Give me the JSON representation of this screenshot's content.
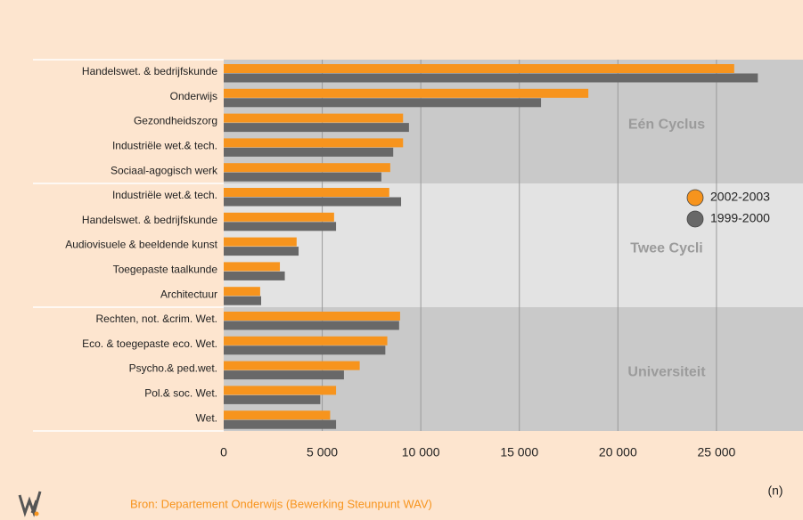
{
  "chart_data": {
    "type": "bar",
    "orientation": "horizontal",
    "groups": [
      {
        "name": "Eén Cyclus",
        "categories": [
          "Handelswet. & bedrijfskunde",
          "Onderwijs",
          "Gezondheidszorg",
          "Industriële wet.& tech.",
          "Sociaal-agogisch werk"
        ]
      },
      {
        "name": "Twee Cycli",
        "categories": [
          "Industriële wet.& tech.",
          "Handelswet. & bedrijfskunde",
          "Audiovisuele & beeldende kunst",
          "Toegepaste taalkunde",
          "Architectuur"
        ]
      },
      {
        "name": "Universiteit",
        "categories": [
          "Rechten, not. &crim. Wet.",
          "Eco. & toegepaste eco. Wet.",
          "Psycho.& ped.wet.",
          "Pol.& soc. Wet.",
          "Wet."
        ]
      }
    ],
    "band_colors": [
      "#c9c9c9",
      "#e3e3e3",
      "#c9c9c9"
    ],
    "series": [
      {
        "name": "2002-2003",
        "color": "#f7941d",
        "values": [
          25900,
          18500,
          9100,
          9100,
          8450,
          8400,
          5600,
          3700,
          2850,
          1850,
          8950,
          8300,
          6900,
          5700,
          5400
        ]
      },
      {
        "name": "1999-2000",
        "color": "#686868",
        "values": [
          27100,
          16100,
          9400,
          8600,
          8000,
          9000,
          5700,
          3800,
          3100,
          1900,
          8900,
          8200,
          6100,
          4900,
          5700
        ]
      }
    ],
    "xlim": [
      0,
      29300
    ],
    "xticks": [
      0,
      {
        "value": 5000,
        "label": "5 000"
      },
      {
        "value": 10000,
        "label": "10 000"
      },
      {
        "value": 15000,
        "label": "15 000"
      },
      {
        "value": 20000,
        "label": "20 000"
      },
      {
        "value": 25000,
        "label": "25 000"
      }
    ],
    "xlabel": "(n)",
    "grid": true,
    "source": "Bron: Departement Onderwijs (Bewerking Steunpunt WAV)"
  }
}
